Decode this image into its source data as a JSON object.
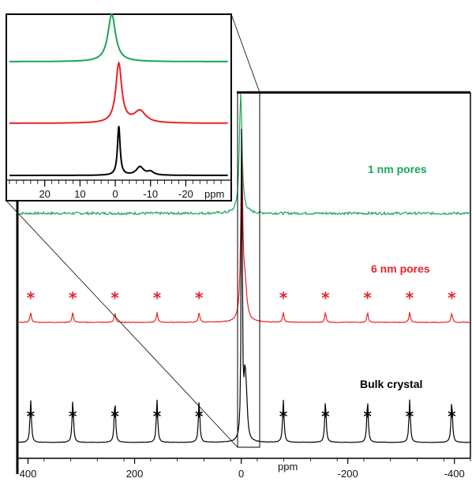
{
  "chart_data": {
    "type": "line",
    "title": "",
    "xlabel": "ppm",
    "ylabel": "",
    "xlim": [
      420,
      -430
    ],
    "x_reversed": true,
    "xticks": [
      400,
      200,
      0,
      -200,
      -400
    ],
    "series": [
      {
        "name": "1 nm pores",
        "color": "#1aa55a",
        "peaks": [
          {
            "x": 1,
            "height": 1.0,
            "width": 1.6
          }
        ]
      },
      {
        "name": "6 nm pores",
        "color": "#e8232a",
        "peaks": [
          {
            "x": -1,
            "height": 1.0,
            "width": 1.2
          },
          {
            "x": -7,
            "height": 0.2,
            "width": 2.2
          }
        ],
        "sidebands": [
          395,
          316,
          237,
          158,
          79,
          -79,
          -158,
          -237,
          -316,
          -395
        ],
        "sideband_height": 0.06
      },
      {
        "name": "Bulk crystal",
        "color": "#000000",
        "peaks": [
          {
            "x": -1,
            "height": 1.0,
            "width": 0.6
          },
          {
            "x": -7,
            "height": 0.17,
            "width": 1.4
          },
          {
            "x": -10,
            "height": 0.07,
            "width": 1.2
          }
        ],
        "sidebands": [
          395,
          316,
          237,
          158,
          79,
          -79,
          -158,
          -237,
          -316,
          -395
        ],
        "sideband_height": 0.12
      }
    ],
    "spinning_sideband_marker": "*",
    "inset": {
      "xlim": [
        30,
        -32
      ],
      "xlabel": "ppm",
      "xticks": [
        20,
        10,
        0,
        -10,
        -20
      ],
      "tick_labels": [
        "20",
        "10",
        "0",
        "-10",
        "-20"
      ]
    }
  }
}
